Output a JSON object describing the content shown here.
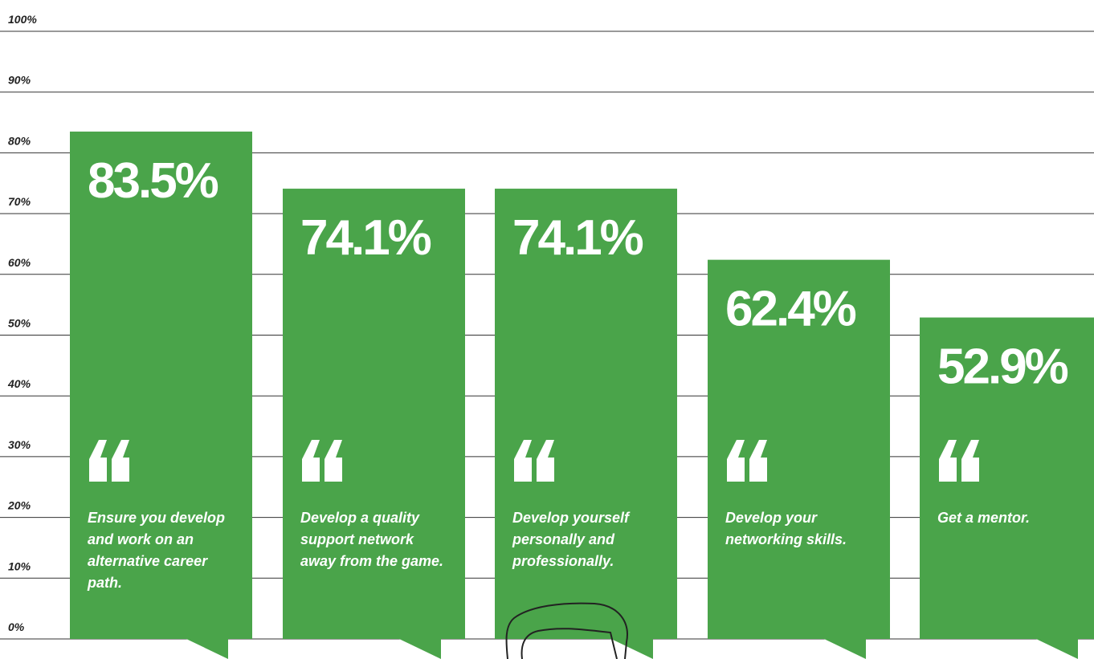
{
  "chart_data": {
    "type": "bar",
    "categories": [
      "Ensure you develop and work on an alternative career path.",
      "Develop a quality support network away from the game.",
      "Develop yourself personally and professionally.",
      "Develop your networking skills.",
      "Get a mentor."
    ],
    "values": [
      83.5,
      74.1,
      74.1,
      62.4,
      52.9
    ],
    "value_labels": [
      "83.5%",
      "74.1%",
      "74.1%",
      "62.4%",
      "52.9%"
    ],
    "color": "#4aa44a",
    "ylim": [
      0,
      100
    ],
    "yticks": [
      {
        "value": 0,
        "label": "0%"
      },
      {
        "value": 10,
        "label": "10%"
      },
      {
        "value": 20,
        "label": "20%"
      },
      {
        "value": 30,
        "label": "30%"
      },
      {
        "value": 40,
        "label": "40%"
      },
      {
        "value": 50,
        "label": "50%"
      },
      {
        "value": 60,
        "label": "60%"
      },
      {
        "value": 70,
        "label": "70%"
      },
      {
        "value": 80,
        "label": "80%"
      },
      {
        "value": 90,
        "label": "90%"
      },
      {
        "value": 100,
        "label": "100%"
      }
    ],
    "grid": true
  }
}
